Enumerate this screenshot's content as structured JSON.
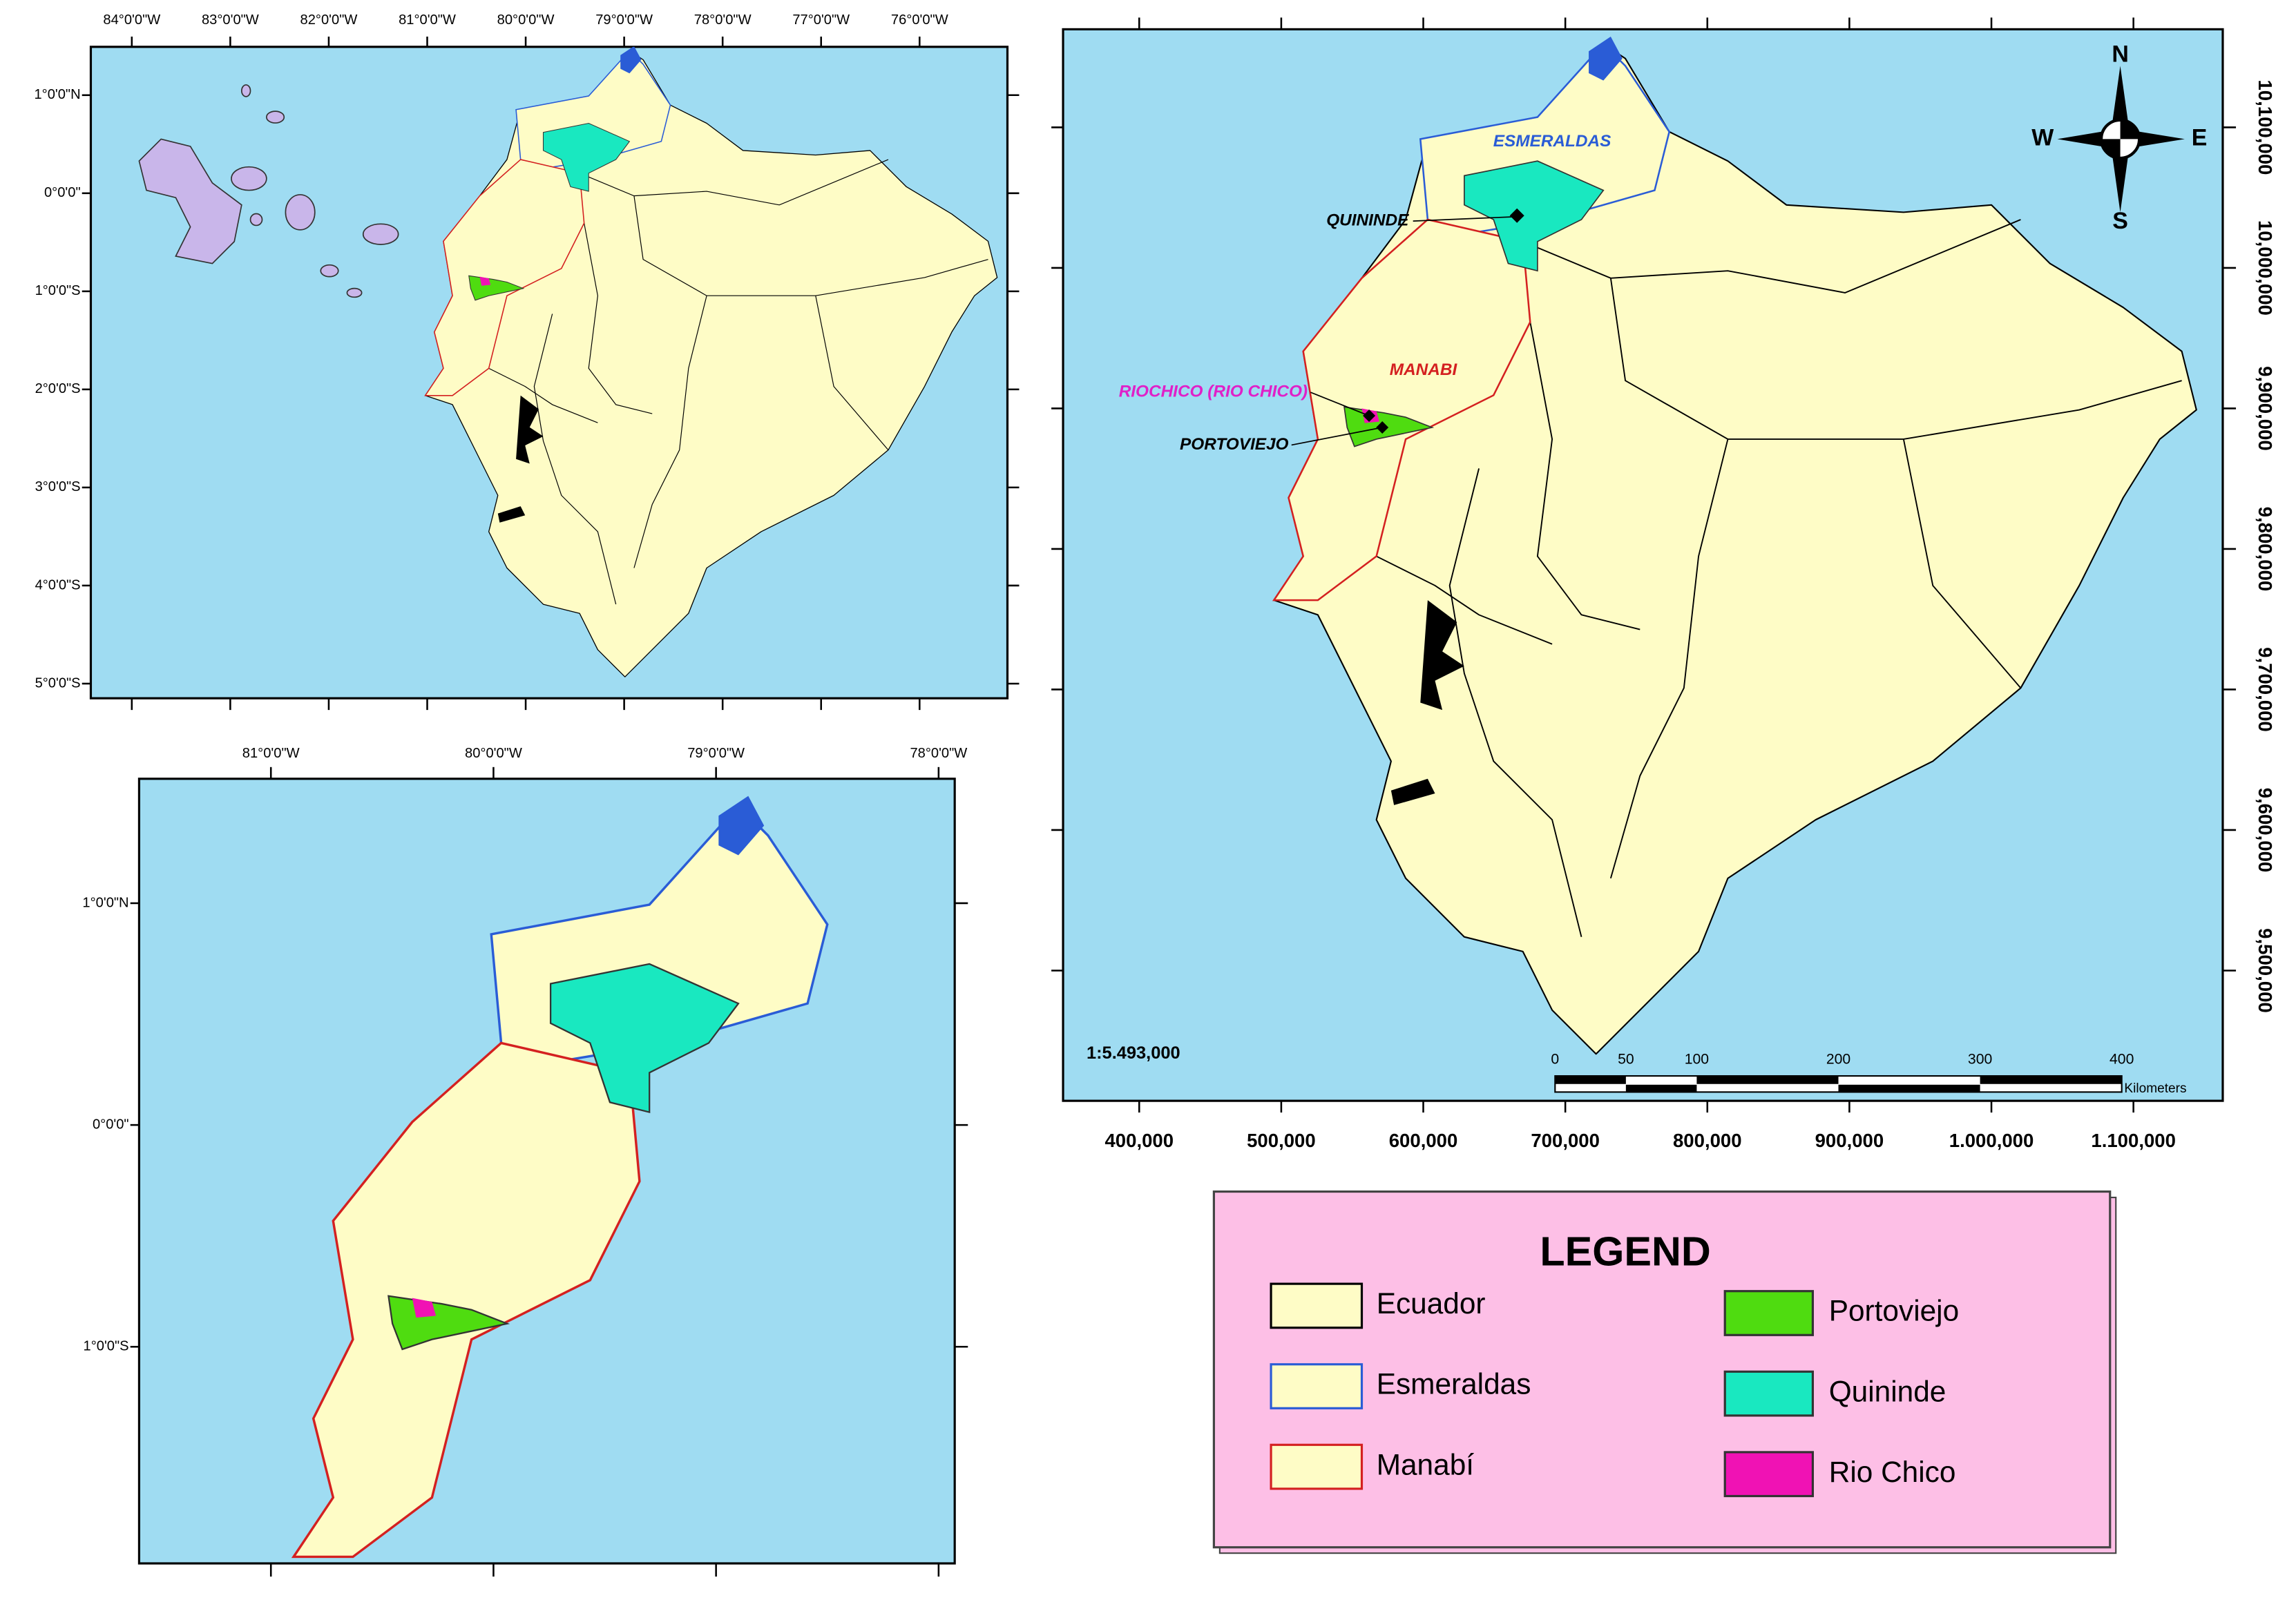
{
  "overview_map": {
    "x_labels": [
      "84°0'0\"W",
      "83°0'0\"W",
      "82°0'0\"W",
      "81°0'0\"W",
      "80°0'0\"W",
      "79°0'0\"W",
      "78°0'0\"W",
      "77°0'0\"W",
      "76°0'0\"W"
    ],
    "y_labels": [
      "1°0'0\"N",
      "0°0'0\"",
      "1°0'0\"S",
      "2°0'0\"S",
      "3°0'0\"S",
      "4°0'0\"S",
      "5°0'0\"S"
    ]
  },
  "detail_map": {
    "x_labels": [
      "81°0'0\"W",
      "80°0'0\"W",
      "79°0'0\"W",
      "78°0'0\"W"
    ],
    "y_labels": [
      "1°0'0\"N",
      "0°0'0\"",
      "1°0'0\"S"
    ]
  },
  "main_map": {
    "place_labels": {
      "esmeraldas": "ESMERALDAS",
      "quininde": "QUININDE",
      "manabi": "MANABI",
      "riochico": "RIOCHICO (RIO CHICO)",
      "portoviejo": "PORTOVIEJO"
    },
    "compass": {
      "n": "N",
      "e": "E",
      "s": "S",
      "w": "W"
    },
    "scale_text": "1:5.493,000",
    "scale_bar": {
      "ticks": [
        0,
        50,
        100,
        200,
        300,
        400
      ],
      "unit": "Kilometers"
    },
    "x_labels": [
      "400,000",
      "500,000",
      "600,000",
      "700,000",
      "800,000",
      "900,000",
      "1.000,000",
      "1.100,000"
    ],
    "y_labels": [
      "10,100,000",
      "10,000,000",
      "9,900,000",
      "9,800,000",
      "9,700,000",
      "9,600,000",
      "9,500,000"
    ]
  },
  "legend": {
    "title": "LEGEND",
    "items": [
      {
        "name": "Ecuador",
        "fill": "#fefcc6",
        "stroke": "#000000"
      },
      {
        "name": "Esmeraldas",
        "fill": "#fefcc6",
        "stroke": "#2a5cd6"
      },
      {
        "name": "Manabí",
        "fill": "#fefcc6",
        "stroke": "#d42020"
      },
      {
        "name": "Portoviejo",
        "fill": "#4fdc10",
        "stroke": "#333333"
      },
      {
        "name": "Quininde",
        "fill": "#19e8c0",
        "stroke": "#333333"
      },
      {
        "name": "Rio Chico",
        "fill": "#f012b4",
        "stroke": "#333333"
      }
    ]
  }
}
